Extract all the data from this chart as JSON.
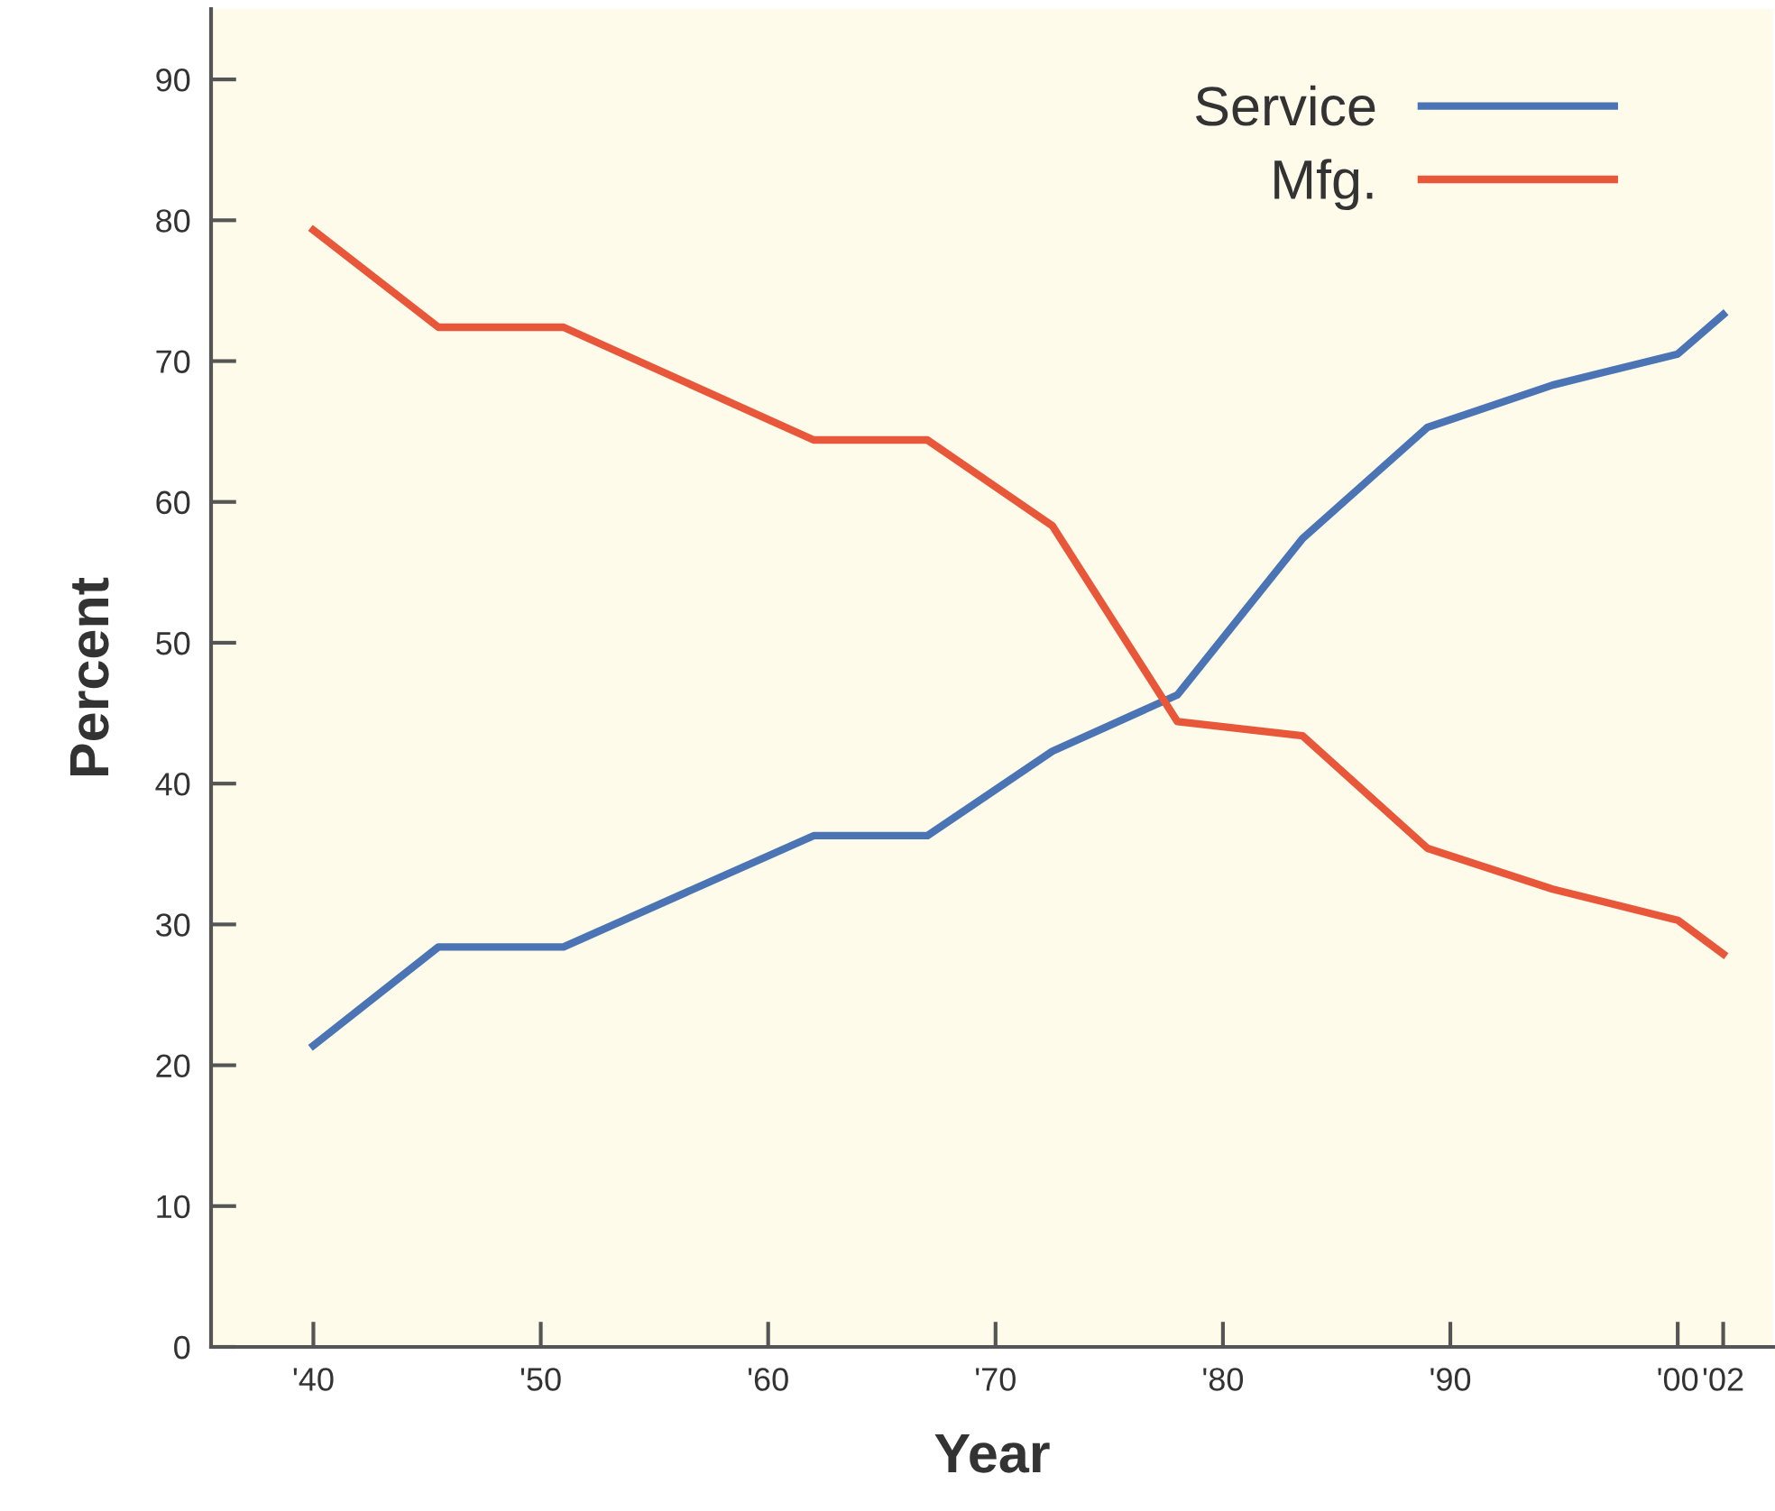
{
  "chart_data": {
    "type": "line",
    "xlabel": "Year",
    "ylabel": "Percent",
    "x": [
      1940,
      1945.5,
      1951,
      1962,
      1967,
      1972.5,
      1978,
      1983.5,
      1989,
      1994.5,
      2000,
      2002
    ],
    "series": [
      {
        "name": "Service",
        "color": "#4a74b4",
        "values": [
          21.4,
          28.4,
          28.4,
          36.3,
          36.3,
          42.3,
          46.3,
          57.4,
          65.3,
          68.3,
          70.5,
          73.3
        ]
      },
      {
        "name": "Mfg.",
        "color": "#e8573a",
        "values": [
          79.3,
          72.4,
          72.4,
          64.4,
          64.4,
          58.3,
          44.4,
          43.4,
          35.4,
          32.5,
          30.3,
          27.9
        ]
      }
    ],
    "xlim": [
      1935.5,
      2004.2
    ],
    "ylim": [
      0,
      95
    ],
    "xticks": [
      {
        "value": 1940,
        "label": "'40"
      },
      {
        "value": 1950,
        "label": "'50"
      },
      {
        "value": 1960,
        "label": "'60"
      },
      {
        "value": 1970,
        "label": "'70"
      },
      {
        "value": 1980,
        "label": "'80"
      },
      {
        "value": 1990,
        "label": "'90"
      },
      {
        "value": 2000,
        "label": "'00"
      },
      {
        "value": 2002,
        "label": "'02"
      }
    ],
    "yticks": [
      0,
      10,
      20,
      30,
      40,
      50,
      60,
      70,
      80,
      90
    ],
    "grid": false,
    "legend": "top right",
    "marker": "none",
    "line_style": "solid"
  }
}
